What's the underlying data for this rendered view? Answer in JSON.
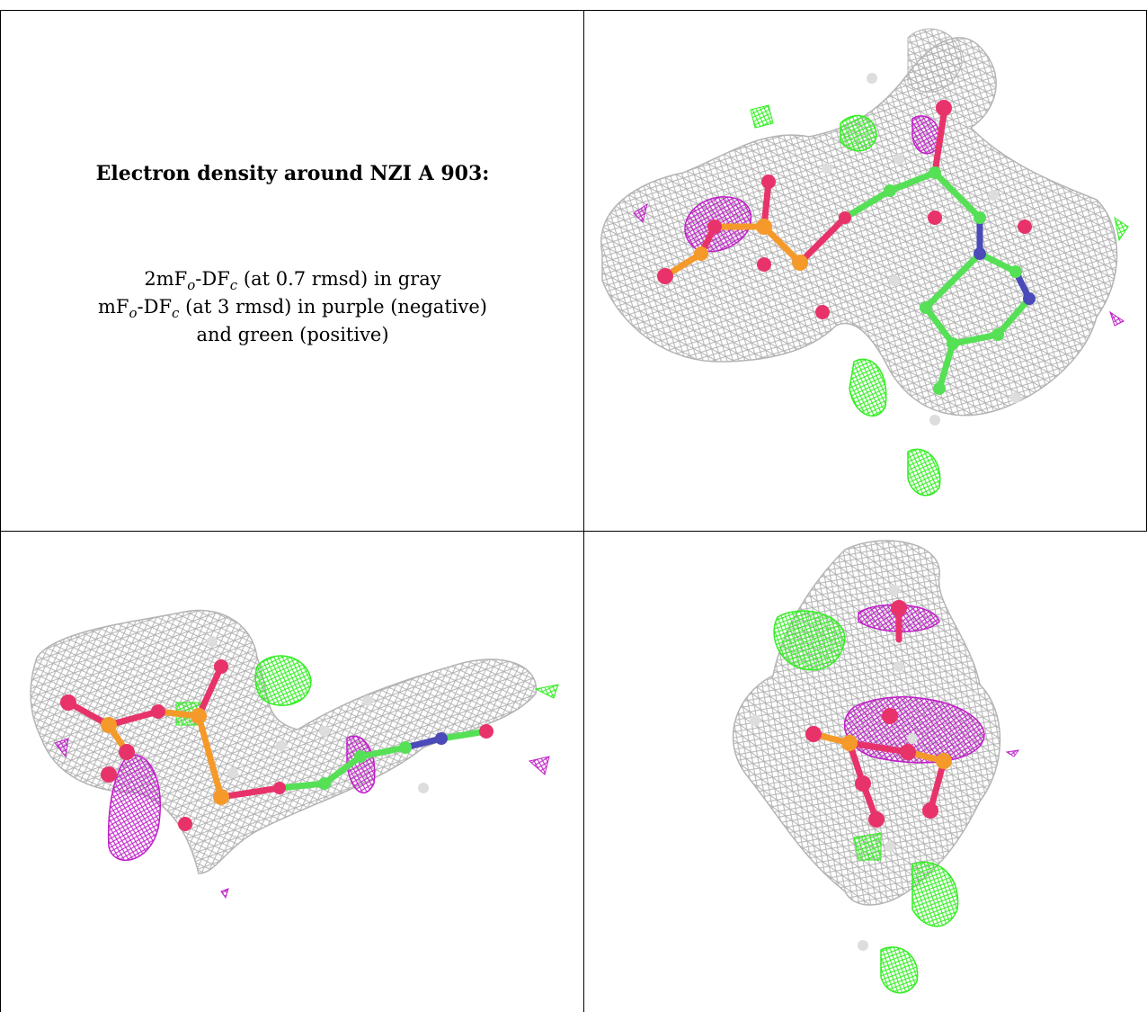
{
  "title": "Electron density around NZI A 903:",
  "legend": {
    "line1_prefix": "2mF",
    "line1_sub_o": "o",
    "line1_mid": "-DF",
    "line1_sub_c": "c",
    "line1_suffix": " (at 0.7 rmsd) in gray",
    "line2_prefix": "mF",
    "line2_sub_o": "o",
    "line2_mid": "-DF",
    "line2_sub_c": "c",
    "line2_suffix": " (at 3 rmsd) in purple (negative)",
    "line3": "and green (positive)"
  },
  "colors": {
    "density_2fofc": "#b4b4b4",
    "density_negative": "#c020c8",
    "density_positive": "#33ee22",
    "carbon": "#55e055",
    "oxygen": "#e8336a",
    "phosphorus": "#f59a2a",
    "nitrogen": "#4a4ab8",
    "hydrogen": "#dddddd"
  },
  "panels": [
    "view-1",
    "view-2",
    "view-3"
  ]
}
